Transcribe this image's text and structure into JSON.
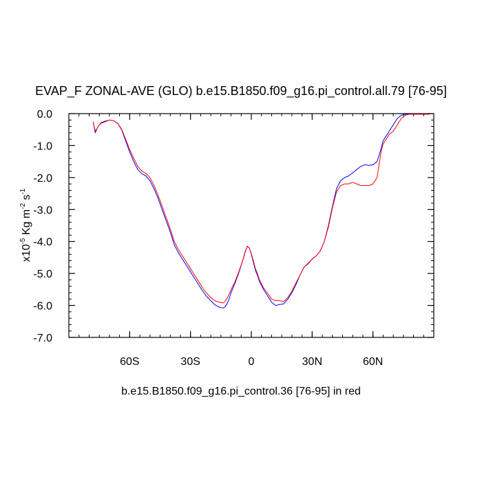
{
  "chart_data": {
    "type": "line",
    "title": "EVAP_F ZONAL-AVE (GLO) b.e15.B1850.f09_g16.pi_control.all.79 [76-95]",
    "subtitle": "b.e15.B1850.f09_g16.pi_control.36 [76-95] in red",
    "ylabel": {
      "prefix": "x10",
      "exp1": "-5",
      "mid": " Kg m",
      "exp2": "-2",
      "mid2": " s",
      "exp3": "-1"
    },
    "xlim": [
      -90,
      90
    ],
    "ylim": [
      -7.0,
      0.0
    ],
    "x_ticks": [
      {
        "value": -60,
        "label": "60S"
      },
      {
        "value": -30,
        "label": "30S"
      },
      {
        "value": 0,
        "label": "0"
      },
      {
        "value": 30,
        "label": "30N"
      },
      {
        "value": 60,
        "label": "60N"
      }
    ],
    "y_ticks": [
      {
        "value": 0,
        "label": "0.0"
      },
      {
        "value": -1,
        "label": "-1.0"
      },
      {
        "value": -2,
        "label": "-2.0"
      },
      {
        "value": -3,
        "label": "-3.0"
      },
      {
        "value": -4,
        "label": "-4.0"
      },
      {
        "value": -5,
        "label": "-5.0"
      },
      {
        "value": -6,
        "label": "-6.0"
      },
      {
        "value": -7,
        "label": "-7.0"
      }
    ],
    "series": [
      {
        "name": "b.e15.B1850.f09_g16.pi_control.all.79 [76-95]",
        "color": "#0000ff",
        "x": [
          -78,
          -77,
          -76,
          -75,
          -74,
          -72,
          -70,
          -68,
          -66,
          -64,
          -62,
          -60,
          -58,
          -56,
          -54,
          -52,
          -50,
          -48,
          -46,
          -44,
          -42,
          -40,
          -38,
          -36,
          -34,
          -32,
          -30,
          -28,
          -26,
          -24,
          -22,
          -20,
          -18,
          -16,
          -14,
          -13,
          -12,
          -11,
          -10,
          -8,
          -6,
          -4,
          -3,
          -2,
          -1,
          0,
          1,
          2,
          3,
          4,
          6,
          8,
          10,
          12,
          14,
          16,
          18,
          20,
          22,
          24,
          26,
          28,
          30,
          32,
          34,
          36,
          38,
          40,
          42,
          44,
          46,
          48,
          50,
          52,
          54,
          56,
          58,
          60,
          62,
          64,
          65,
          66,
          67,
          68,
          70,
          72,
          74,
          76,
          78,
          80,
          82,
          84,
          86,
          88
        ],
        "y": [
          -0.25,
          -0.6,
          -0.45,
          -0.35,
          -0.3,
          -0.25,
          -0.2,
          -0.22,
          -0.3,
          -0.5,
          -0.85,
          -1.2,
          -1.5,
          -1.75,
          -1.88,
          -1.95,
          -2.1,
          -2.35,
          -2.65,
          -3.0,
          -3.35,
          -3.7,
          -4.1,
          -4.35,
          -4.55,
          -4.75,
          -4.95,
          -5.15,
          -5.35,
          -5.55,
          -5.72,
          -5.85,
          -5.98,
          -6.05,
          -6.08,
          -6.05,
          -5.95,
          -5.8,
          -5.6,
          -5.3,
          -4.95,
          -4.55,
          -4.3,
          -4.15,
          -4.2,
          -4.4,
          -4.65,
          -4.9,
          -5.05,
          -5.25,
          -5.5,
          -5.7,
          -5.9,
          -6.0,
          -5.97,
          -5.95,
          -5.8,
          -5.6,
          -5.35,
          -5.05,
          -4.8,
          -4.7,
          -4.55,
          -4.45,
          -4.3,
          -4.0,
          -3.5,
          -2.9,
          -2.35,
          -2.1,
          -2.0,
          -1.95,
          -1.85,
          -1.75,
          -1.65,
          -1.6,
          -1.62,
          -1.6,
          -1.5,
          -1.1,
          -0.85,
          -0.75,
          -0.65,
          -0.55,
          -0.35,
          -0.15,
          -0.05,
          -0.02,
          -0.02,
          -0.02,
          -0.02,
          -0.02,
          -0.02,
          -0.02
        ]
      },
      {
        "name": "b.e15.B1850.f09_g16.pi_control.36 [76-95]",
        "color": "#ff0000",
        "x": [
          -78,
          -77,
          -76,
          -75,
          -74,
          -72,
          -70,
          -68,
          -66,
          -64,
          -62,
          -60,
          -58,
          -56,
          -54,
          -52,
          -50,
          -48,
          -46,
          -44,
          -42,
          -40,
          -38,
          -36,
          -34,
          -32,
          -30,
          -28,
          -26,
          -24,
          -22,
          -20,
          -18,
          -16,
          -14,
          -13,
          -12,
          -11,
          -10,
          -8,
          -6,
          -4,
          -3,
          -2,
          -1,
          0,
          1,
          2,
          3,
          4,
          6,
          8,
          10,
          12,
          14,
          16,
          18,
          20,
          22,
          24,
          26,
          28,
          30,
          32,
          34,
          36,
          38,
          40,
          42,
          44,
          46,
          48,
          50,
          52,
          54,
          56,
          58,
          60,
          62,
          64,
          65,
          66,
          67,
          68,
          70,
          72,
          74,
          76,
          78,
          80,
          82,
          84,
          86,
          88
        ],
        "y": [
          -0.25,
          -0.55,
          -0.45,
          -0.35,
          -0.28,
          -0.23,
          -0.2,
          -0.22,
          -0.3,
          -0.48,
          -0.8,
          -1.12,
          -1.4,
          -1.65,
          -1.8,
          -1.87,
          -2.0,
          -2.25,
          -2.55,
          -2.9,
          -3.25,
          -3.6,
          -4.0,
          -4.25,
          -4.45,
          -4.65,
          -4.85,
          -5.05,
          -5.25,
          -5.45,
          -5.62,
          -5.75,
          -5.85,
          -5.9,
          -5.92,
          -5.88,
          -5.78,
          -5.65,
          -5.5,
          -5.25,
          -4.92,
          -4.55,
          -4.32,
          -4.15,
          -4.2,
          -4.38,
          -4.6,
          -4.85,
          -5.0,
          -5.2,
          -5.45,
          -5.62,
          -5.8,
          -5.85,
          -5.85,
          -5.88,
          -5.75,
          -5.55,
          -5.3,
          -5.05,
          -4.8,
          -4.68,
          -4.55,
          -4.45,
          -4.3,
          -4.0,
          -3.55,
          -2.95,
          -2.45,
          -2.25,
          -2.2,
          -2.2,
          -2.15,
          -2.2,
          -2.25,
          -2.25,
          -2.25,
          -2.2,
          -2.0,
          -1.2,
          -0.95,
          -0.85,
          -0.75,
          -0.65,
          -0.55,
          -0.35,
          -0.15,
          -0.05,
          -0.02,
          -0.02,
          -0.02,
          -0.02,
          -0.02,
          -0.02
        ]
      }
    ]
  }
}
